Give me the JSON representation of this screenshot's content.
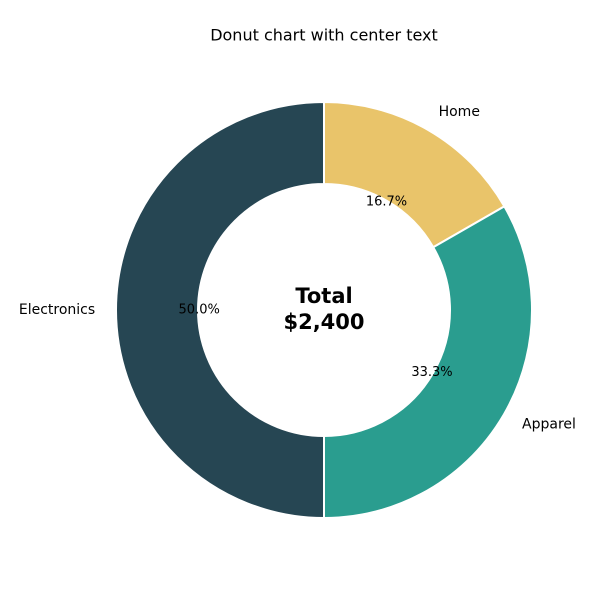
{
  "chart_data": {
    "type": "donut",
    "title": "Donut chart with center text",
    "categories": [
      "Home",
      "Apparel",
      "Electronics"
    ],
    "values": [
      16.7,
      33.3,
      50.0
    ],
    "value_labels": [
      "16.7%",
      "33.3%",
      "50.0%"
    ],
    "colors": [
      "#e9c46a",
      "#2a9d8f",
      "#264653"
    ],
    "center_text": [
      "Total",
      "$2,400"
    ]
  }
}
